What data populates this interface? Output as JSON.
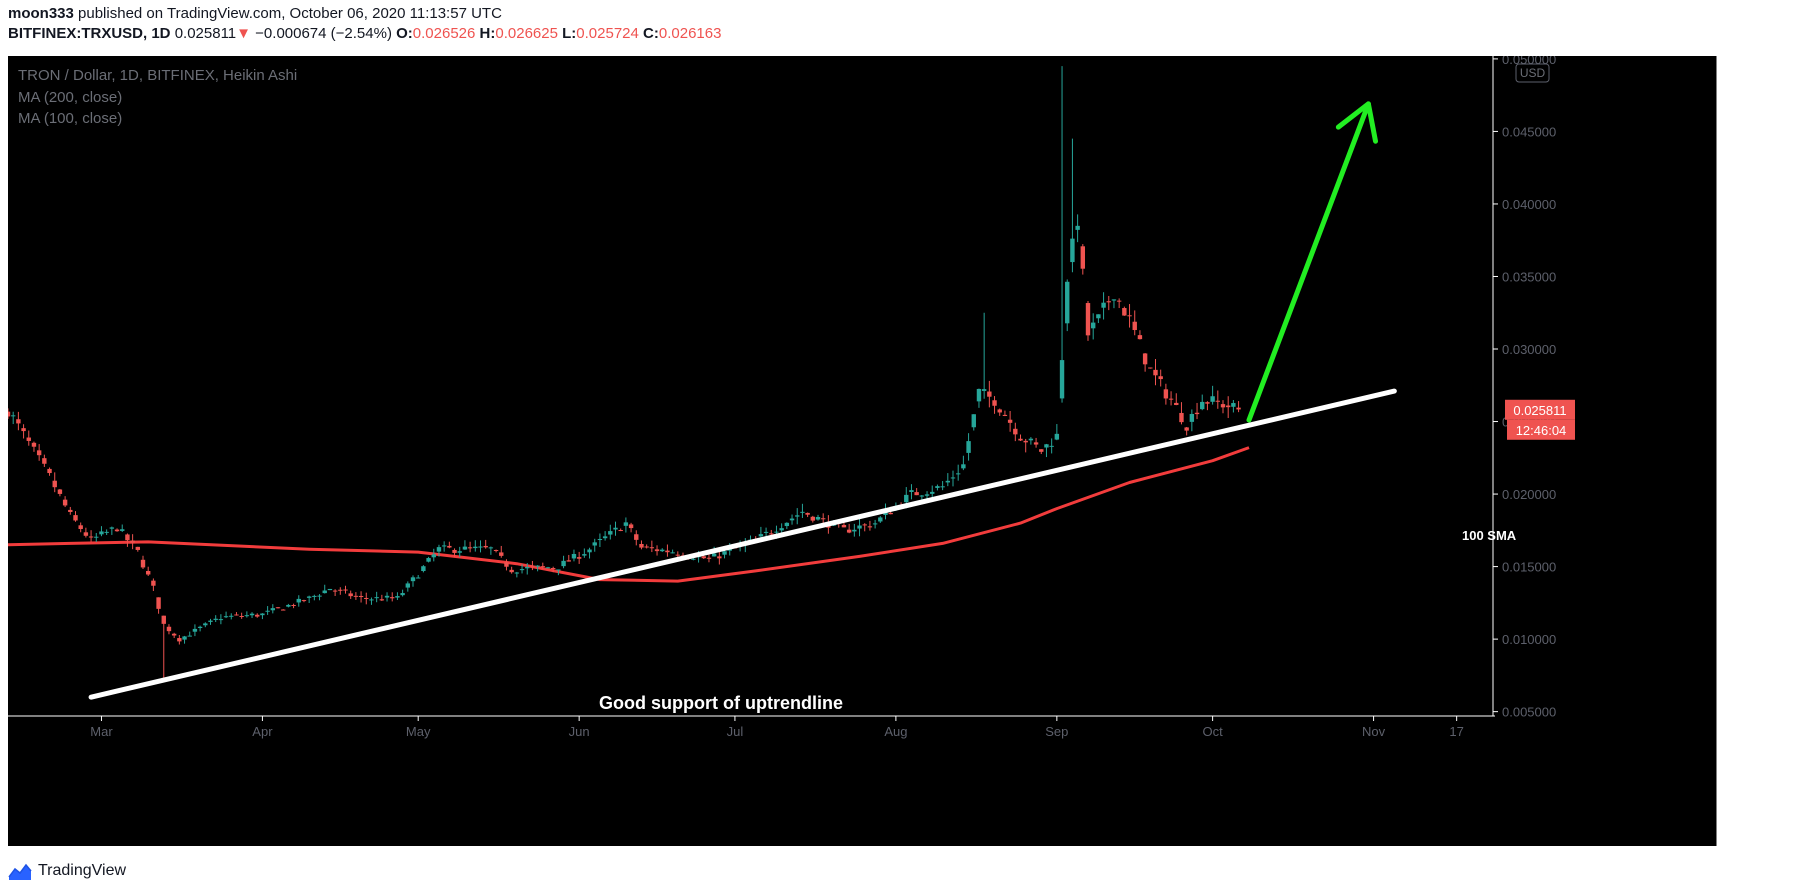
{
  "header": {
    "author": "moon333",
    "published_text": "published on TradingView.com, October 06, 2020 11:13:57 UTC",
    "symbol": "BITFINEX:TRXUSD, 1D",
    "last": "0.025811",
    "arrow": "▼",
    "change": "−0.000674 (−2.54%)",
    "o_label": "O:",
    "o": "0.026526",
    "h_label": "H:",
    "h": "0.026625",
    "l_label": "L:",
    "l": "0.025724",
    "c_label": "C:",
    "c": "0.026163"
  },
  "legend": {
    "title": "TRON / Dollar, 1D, BITFINEX, Heikin Ashi",
    "ma200": "MA (200, close)",
    "ma100": "MA (100, close)"
  },
  "currency_badge": "USD",
  "price_badge": {
    "value": "0.025811",
    "countdown": "12:46:04"
  },
  "annotations": {
    "uptrend": "Good support of uptrendline",
    "sma": "100 SMA"
  },
  "footer": {
    "brand": "TradingView"
  },
  "colors": {
    "up": "#26a69a",
    "down": "#ef5350",
    "ma": "#f23c3c",
    "trendline": "#ffffff",
    "arrow": "#22ee22",
    "bg": "#000000"
  },
  "chart_data": {
    "type": "candlestick",
    "title": "TRON / Dollar, 1D, BITFINEX, Heikin Ashi",
    "y_ticks": [
      "0.005000",
      "0.010000",
      "0.015000",
      "0.020000",
      "0.025000",
      "0.030000",
      "0.035000",
      "0.040000",
      "0.045000",
      "0.050000"
    ],
    "ylim": [
      0.0047,
      0.0502
    ],
    "x_ticks": [
      {
        "date": "2020-03-01",
        "label": "Mar"
      },
      {
        "date": "2020-04-01",
        "label": "Apr"
      },
      {
        "date": "2020-05-01",
        "label": "May"
      },
      {
        "date": "2020-06-01",
        "label": "Jun"
      },
      {
        "date": "2020-07-01",
        "label": "Jul"
      },
      {
        "date": "2020-08-01",
        "label": "Aug"
      },
      {
        "date": "2020-09-01",
        "label": "Sep"
      },
      {
        "date": "2020-10-01",
        "label": "Oct"
      },
      {
        "date": "2020-11-01",
        "label": "Nov"
      },
      {
        "date": "2020-11-17",
        "label": "17"
      }
    ],
    "xlim": [
      "2020-02-12",
      "2020-11-24"
    ],
    "last_price": 0.025811,
    "anchors": [
      [
        "2020-02-12",
        0.0258
      ],
      [
        "2020-02-16",
        0.0235
      ],
      [
        "2020-02-20",
        0.0212
      ],
      [
        "2020-02-24",
        0.0185
      ],
      [
        "2020-02-28",
        0.0168
      ],
      [
        "2020-03-04",
        0.0177
      ],
      [
        "2020-03-08",
        0.016
      ],
      [
        "2020-03-11",
        0.0135
      ],
      [
        "2020-03-13",
        0.011
      ],
      [
        "2020-03-16",
        0.01
      ],
      [
        "2020-03-24",
        0.0115
      ],
      [
        "2020-04-01",
        0.0117
      ],
      [
        "2020-04-10",
        0.0128
      ],
      [
        "2020-04-14",
        0.0135
      ],
      [
        "2020-04-20",
        0.0128
      ],
      [
        "2020-04-27",
        0.0128
      ],
      [
        "2020-05-05",
        0.0162
      ],
      [
        "2020-05-15",
        0.0162
      ],
      [
        "2020-05-19",
        0.0148
      ],
      [
        "2020-05-28",
        0.015
      ],
      [
        "2020-06-03",
        0.0162
      ],
      [
        "2020-06-10",
        0.018
      ],
      [
        "2020-06-13",
        0.0163
      ],
      [
        "2020-06-20",
        0.016
      ],
      [
        "2020-06-26",
        0.0155
      ],
      [
        "2020-07-05",
        0.0168
      ],
      [
        "2020-07-14",
        0.0188
      ],
      [
        "2020-07-22",
        0.0175
      ],
      [
        "2020-07-28",
        0.018
      ],
      [
        "2020-08-04",
        0.02
      ],
      [
        "2020-08-10",
        0.0205
      ],
      [
        "2020-08-14",
        0.022
      ],
      [
        "2020-08-17",
        0.027
      ],
      [
        "2020-08-20",
        0.0265
      ],
      [
        "2020-08-25",
        0.024
      ],
      [
        "2020-08-29",
        0.023
      ],
      [
        "2020-09-01",
        0.024
      ],
      [
        "2020-09-03",
        0.035
      ],
      [
        "2020-09-05",
        0.039
      ],
      [
        "2020-09-07",
        0.031
      ],
      [
        "2020-09-09",
        0.032
      ],
      [
        "2020-09-12",
        0.034
      ],
      [
        "2020-09-15",
        0.032
      ],
      [
        "2020-09-19",
        0.0285
      ],
      [
        "2020-09-23",
        0.0265
      ],
      [
        "2020-09-26",
        0.0248
      ],
      [
        "2020-09-29",
        0.0265
      ],
      [
        "2020-10-03",
        0.0262
      ],
      [
        "2020-10-06",
        0.0258
      ]
    ],
    "ma100": [
      [
        "2020-02-12",
        0.0165
      ],
      [
        "2020-02-24",
        0.0166
      ],
      [
        "2020-03-10",
        0.0167
      ],
      [
        "2020-04-10",
        0.0162
      ],
      [
        "2020-05-01",
        0.016
      ],
      [
        "2020-05-20",
        0.0152
      ],
      [
        "2020-06-05",
        0.0141
      ],
      [
        "2020-06-20",
        0.014
      ],
      [
        "2020-07-05",
        0.0147
      ],
      [
        "2020-07-25",
        0.0157
      ],
      [
        "2020-08-10",
        0.0166
      ],
      [
        "2020-08-25",
        0.018
      ],
      [
        "2020-09-01",
        0.019
      ],
      [
        "2020-09-15",
        0.0208
      ],
      [
        "2020-10-01",
        0.0223
      ],
      [
        "2020-10-08",
        0.0232
      ]
    ],
    "trendline": [
      [
        "2020-02-28",
        0.006
      ],
      [
        "2020-11-05",
        0.0271
      ]
    ],
    "arrow_projection": [
      [
        "2020-10-08",
        0.0251
      ],
      [
        "2020-10-31",
        0.0469
      ]
    ]
  }
}
